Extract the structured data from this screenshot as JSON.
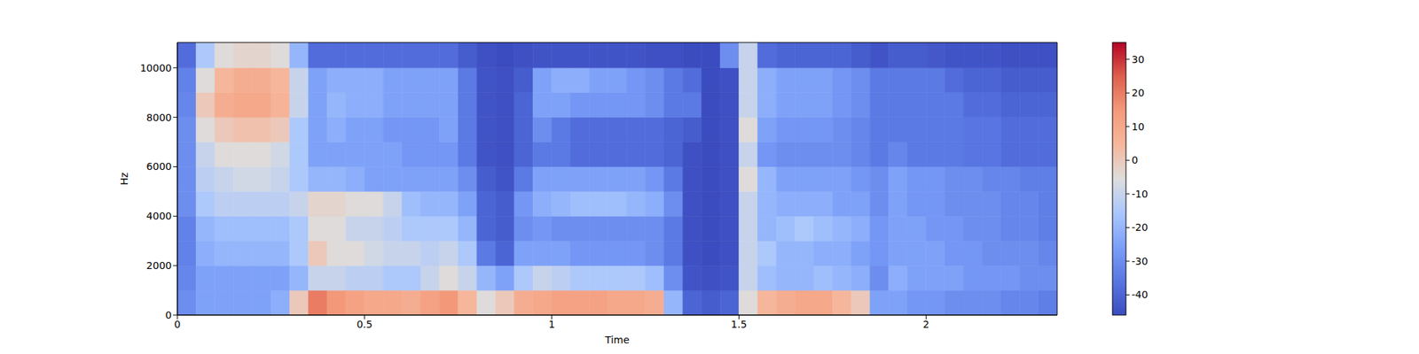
{
  "chart_data": {
    "type": "heatmap",
    "xlabel": "Time",
    "ylabel": "Hz",
    "xlim": [
      0,
      2.35
    ],
    "ylim": [
      0,
      11025
    ],
    "xticks": [
      0,
      0.5,
      1,
      1.5,
      2
    ],
    "yticks": [
      0,
      2000,
      4000,
      6000,
      8000,
      10000
    ],
    "x_edges": [
      0,
      0.05,
      0.1,
      0.15,
      0.2,
      0.25,
      0.3,
      0.35,
      0.4,
      0.45,
      0.5,
      0.55,
      0.6,
      0.65,
      0.7,
      0.75,
      0.8,
      0.85,
      0.9,
      0.95,
      1,
      1.05,
      1.1,
      1.15,
      1.2,
      1.25,
      1.3,
      1.35,
      1.4,
      1.45,
      1.5,
      1.55,
      1.6,
      1.65,
      1.7,
      1.75,
      1.8,
      1.85,
      1.9,
      1.95,
      2,
      2.05,
      2.1,
      2.15,
      2.2,
      2.25,
      2.3,
      2.35
    ],
    "y_edges": [
      0,
      1000,
      2000,
      3000,
      4000,
      5000,
      6000,
      7000,
      8000,
      9000,
      10000,
      11025
    ],
    "cells": [
      [
        -30,
        -32,
        -33,
        -33,
        -30,
        -30,
        -30,
        -30,
        -32,
        -33,
        -38
      ],
      [
        -25,
        -25,
        -22,
        -20,
        -15,
        -12,
        -10,
        -5,
        0,
        -5,
        -15
      ],
      [
        -25,
        -25,
        -20,
        -18,
        -12,
        -10,
        -5,
        0,
        8,
        5,
        -5
      ],
      [
        -25,
        -25,
        -20,
        -18,
        -12,
        -8,
        -5,
        2,
        10,
        8,
        -3
      ],
      [
        -25,
        -25,
        -20,
        -18,
        -12,
        -8,
        -5,
        2,
        10,
        8,
        -3
      ],
      [
        -22,
        -25,
        -20,
        -18,
        -12,
        -10,
        -8,
        0,
        6,
        5,
        -5
      ],
      [
        0,
        -20,
        -15,
        -15,
        -10,
        -15,
        -15,
        -15,
        -10,
        -10,
        -20
      ],
      [
        20,
        -10,
        0,
        -5,
        -3,
        -20,
        -25,
        -25,
        -25,
        -25,
        -38
      ],
      [
        15,
        -10,
        -5,
        -5,
        -3,
        -20,
        -25,
        -22,
        -20,
        -22,
        -38
      ],
      [
        12,
        -12,
        -5,
        -10,
        -5,
        -22,
        -25,
        -25,
        -22,
        -22,
        -38
      ],
      [
        10,
        -12,
        -8,
        -10,
        -5,
        -25,
        -25,
        -25,
        -22,
        -22,
        -38
      ],
      [
        10,
        -15,
        -10,
        -12,
        -10,
        -25,
        -25,
        -28,
        -25,
        -25,
        -38
      ],
      [
        8,
        -15,
        -10,
        -15,
        -18,
        -25,
        -28,
        -28,
        -25,
        -25,
        -38
      ],
      [
        12,
        -10,
        -12,
        -15,
        -20,
        -25,
        -28,
        -28,
        -25,
        -25,
        -38
      ],
      [
        15,
        -5,
        -10,
        -15,
        -20,
        -25,
        -28,
        -25,
        -25,
        -25,
        -38
      ],
      [
        5,
        -10,
        -15,
        -20,
        -25,
        -30,
        -35,
        -35,
        -35,
        -35,
        -42
      ],
      [
        -5,
        -20,
        -35,
        -40,
        -40,
        -42,
        -44,
        -44,
        -44,
        -44,
        -45
      ],
      [
        0,
        -25,
        -40,
        -42,
        -42,
        -44,
        -45,
        -45,
        -45,
        -45,
        -46
      ],
      [
        8,
        -15,
        -25,
        -30,
        -28,
        -35,
        -40,
        -40,
        -40,
        -42,
        -45
      ],
      [
        10,
        -10,
        -25,
        -28,
        -22,
        -25,
        -35,
        -30,
        -25,
        -25,
        -44
      ],
      [
        12,
        -12,
        -25,
        -30,
        -20,
        -25,
        -35,
        -35,
        -25,
        -22,
        -44
      ],
      [
        12,
        -15,
        -28,
        -30,
        -18,
        -25,
        -38,
        -38,
        -28,
        -22,
        -44
      ],
      [
        12,
        -15,
        -28,
        -30,
        -18,
        -25,
        -38,
        -38,
        -28,
        -25,
        -44
      ],
      [
        10,
        -15,
        -28,
        -30,
        -18,
        -25,
        -38,
        -38,
        -28,
        -25,
        -44
      ],
      [
        10,
        -15,
        -28,
        -30,
        -20,
        -25,
        -38,
        -38,
        -28,
        -28,
        -44
      ],
      [
        8,
        -18,
        -30,
        -30,
        -22,
        -28,
        -38,
        -38,
        -30,
        -30,
        -45
      ],
      [
        -20,
        -30,
        -35,
        -35,
        -30,
        -35,
        -40,
        -40,
        -35,
        -35,
        -45
      ],
      [
        -40,
        -44,
        -45,
        -45,
        -45,
        -45,
        -45,
        -42,
        -35,
        -38,
        -46
      ],
      [
        -42,
        -45,
        -46,
        -46,
        -46,
        -46,
        -46,
        -46,
        -46,
        -46,
        -46
      ],
      [
        -40,
        -44,
        -45,
        -45,
        -45,
        -45,
        -45,
        -45,
        -45,
        -45,
        -30
      ],
      [
        -5,
        -10,
        -10,
        -10,
        -10,
        -5,
        -10,
        -5,
        -10,
        -10,
        -10
      ],
      [
        5,
        -18,
        -15,
        -20,
        -20,
        -20,
        -28,
        -25,
        -22,
        -22,
        -38
      ],
      [
        8,
        -20,
        -20,
        -18,
        -22,
        -25,
        -30,
        -28,
        -25,
        -25,
        -40
      ],
      [
        10,
        -20,
        -20,
        -15,
        -22,
        -25,
        -30,
        -28,
        -25,
        -25,
        -40
      ],
      [
        10,
        -18,
        -22,
        -18,
        -22,
        -25,
        -30,
        -28,
        -25,
        -25,
        -40
      ],
      [
        5,
        -20,
        -22,
        -20,
        -25,
        -25,
        -30,
        -30,
        -28,
        -28,
        -40
      ],
      [
        0,
        -22,
        -25,
        -22,
        -25,
        -28,
        -32,
        -32,
        -30,
        -30,
        -42
      ],
      [
        -25,
        -30,
        -28,
        -28,
        -30,
        -30,
        -35,
        -35,
        -35,
        -35,
        -44
      ],
      [
        -25,
        -22,
        -25,
        -25,
        -25,
        -25,
        -32,
        -35,
        -35,
        -35,
        -42
      ],
      [
        -28,
        -25,
        -25,
        -25,
        -28,
        -28,
        -35,
        -35,
        -35,
        -35,
        -42
      ],
      [
        -28,
        -25,
        -25,
        -28,
        -28,
        -28,
        -35,
        -35,
        -35,
        -35,
        -43
      ],
      [
        -30,
        -25,
        -28,
        -28,
        -30,
        -30,
        -35,
        -35,
        -35,
        -38,
        -44
      ],
      [
        -30,
        -28,
        -28,
        -30,
        -30,
        -30,
        -36,
        -36,
        -38,
        -40,
        -44
      ],
      [
        -30,
        -28,
        -30,
        -30,
        -30,
        -32,
        -36,
        -36,
        -38,
        -40,
        -44
      ],
      [
        -32,
        -28,
        -30,
        -32,
        -32,
        -32,
        -38,
        -38,
        -40,
        -42,
        -45
      ],
      [
        -32,
        -30,
        -30,
        -32,
        -32,
        -34,
        -38,
        -38,
        -40,
        -42,
        -45
      ],
      [
        -34,
        -30,
        -32,
        -34,
        -34,
        -34,
        -38,
        -38,
        -40,
        -42,
        -45
      ]
    ],
    "color_range": [
      -46,
      35
    ],
    "color_ticks": [
      -40,
      -30,
      -20,
      -10,
      0,
      10,
      20,
      30
    ]
  }
}
